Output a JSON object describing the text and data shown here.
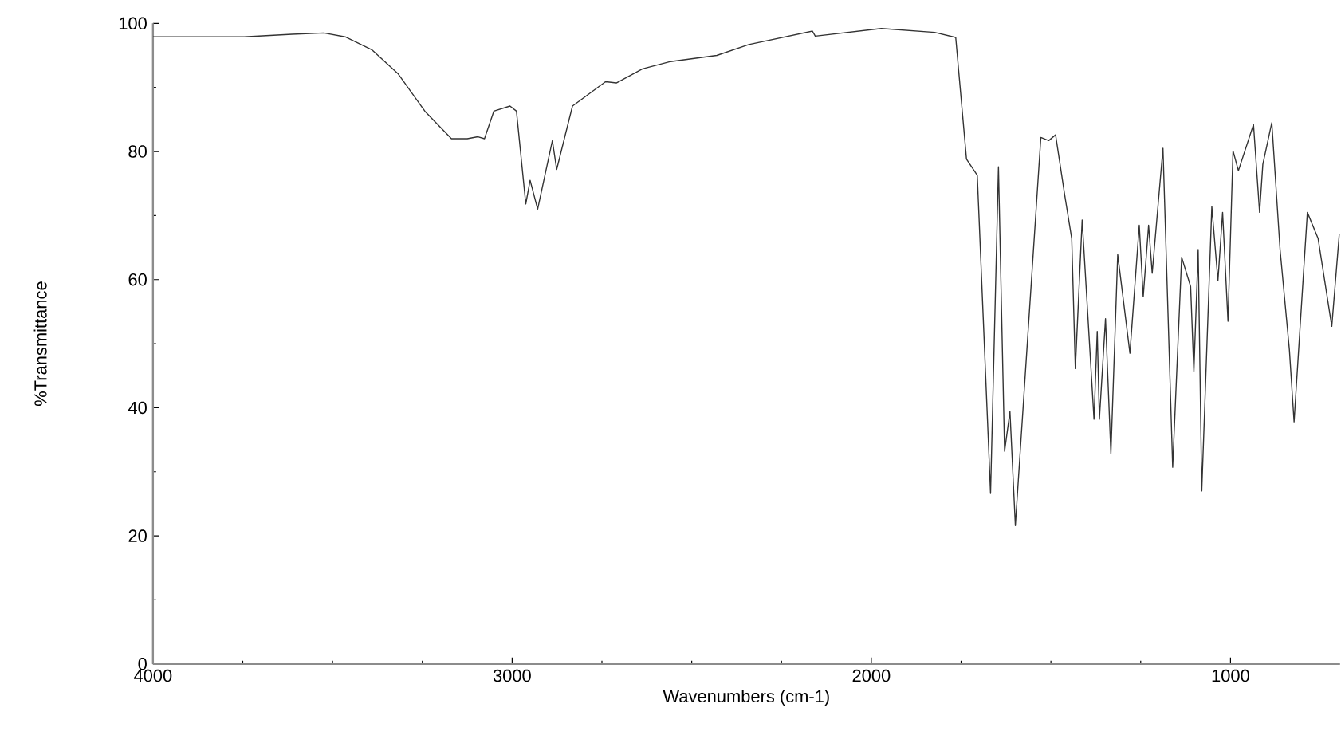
{
  "chart_data": {
    "type": "line",
    "xlabel": "Wavenumbers (cm-1)",
    "ylabel": "%Transmittance",
    "xlim": [
      4000,
      695
    ],
    "ylim": [
      0,
      100
    ],
    "xticks": [
      4000,
      3000,
      2000,
      1000
    ],
    "yticks": [
      0,
      20,
      40,
      60,
      80,
      100
    ],
    "grid": false,
    "series": [
      {
        "color": "#333333",
        "x": [
          4000,
          3746,
          3613,
          3524,
          3465,
          3391,
          3317,
          3243,
          3169,
          3125,
          3095,
          3077,
          3051,
          3006,
          2988,
          2962,
          2950,
          2929,
          2888,
          2876,
          2832,
          2740,
          2710,
          2637,
          2563,
          2430,
          2341,
          2164,
          2156,
          1972,
          1824,
          1765,
          1735,
          1705,
          1668,
          1646,
          1629,
          1614,
          1599,
          1528,
          1506,
          1487,
          1461,
          1442,
          1432,
          1413,
          1380,
          1371,
          1365,
          1348,
          1333,
          1314,
          1280,
          1254,
          1243,
          1228,
          1218,
          1188,
          1161,
          1136,
          1111,
          1102,
          1090,
          1080,
          1052,
          1035,
          1022,
          1007,
          993,
          978,
          936,
          919,
          910,
          885,
          862,
          836,
          823,
          786,
          756,
          718,
          697
        ],
        "values": [
          97.9,
          97.9,
          98.3,
          98.5,
          97.9,
          95.9,
          92.1,
          86.3,
          82.0,
          82.0,
          82.3,
          82.0,
          86.3,
          87.1,
          86.3,
          71.8,
          75.5,
          71.0,
          81.7,
          77.2,
          87.1,
          90.9,
          90.7,
          92.9,
          94.0,
          95.0,
          96.7,
          98.8,
          98.0,
          99.2,
          98.6,
          97.8,
          78.8,
          76.3,
          26.6,
          77.6,
          33.2,
          39.4,
          21.6,
          82.2,
          81.7,
          82.6,
          73.0,
          66.4,
          46.1,
          69.3,
          38.2,
          51.9,
          38.2,
          53.9,
          32.8,
          63.9,
          48.5,
          68.5,
          57.3,
          68.5,
          61.0,
          80.5,
          30.7,
          63.5,
          58.9,
          45.6,
          64.7,
          27.0,
          71.4,
          59.8,
          70.5,
          53.5,
          80.1,
          77.0,
          84.2,
          70.5,
          78.0,
          84.5,
          64.7,
          49.0,
          37.8,
          70.5,
          66.4,
          52.7,
          67.2
        ]
      }
    ]
  }
}
